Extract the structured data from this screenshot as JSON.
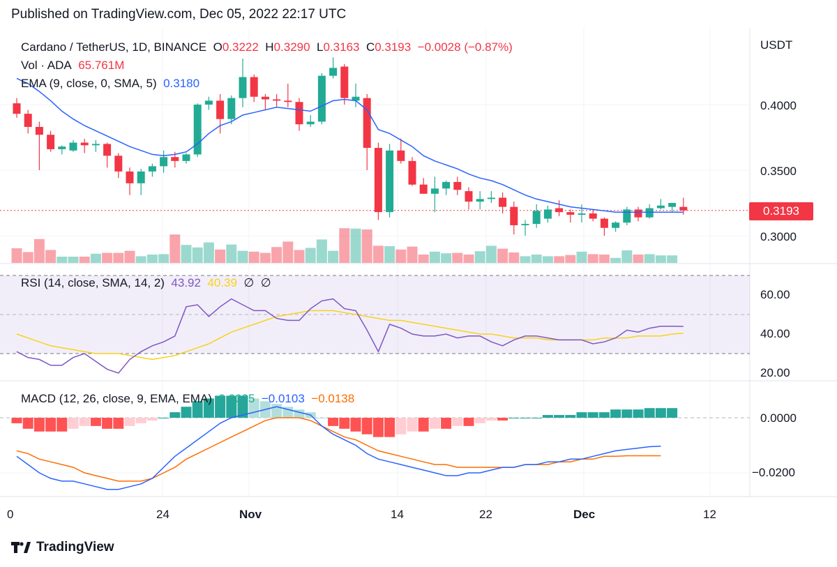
{
  "caption": "Published on TradingView.com, Dec 05, 2022 22:17 UTC",
  "footer": {
    "brand": "TradingView"
  },
  "colors": {
    "up": "#22ab94",
    "down": "#f23645",
    "ema": "#2962ff",
    "rsi": "#7e57c2",
    "rsi_ma": "#f7d21b",
    "macd": "#2962ff",
    "signal": "#ff6d00"
  },
  "legend": {
    "symbol": "Cardano / TetherUS, 1D, BINANCE",
    "o_label": "O",
    "o": "0.3222",
    "h_label": "H",
    "h": "0.3290",
    "l_label": "L",
    "l": "0.3163",
    "c_label": "C",
    "c": "0.3193",
    "change": "−0.0028 (−0.87%)",
    "vol_label": "Vol · ADA",
    "vol": "65.761M",
    "ema_label": "EMA (9, close, 0, SMA, 5)",
    "ema": "0.3180",
    "rsi_label": "RSI (14, close, SMA, 14, 2)",
    "rsi": "43.92",
    "rsi_ma": "40.39",
    "rsi_null1": "∅",
    "rsi_null2": "∅",
    "macd_label": "MACD (12, 26, close, 9, EMA, EMA)",
    "macd_hist": "0.0035",
    "macd": "−0.0103",
    "macd_signal": "−0.0138"
  },
  "price_axis": {
    "unit": "USDT",
    "ticks": [
      "0.4000",
      "0.3500",
      "0.3000"
    ],
    "last": "0.3193"
  },
  "rsi_axis": {
    "ticks": [
      "60.00",
      "40.00",
      "20.00"
    ]
  },
  "macd_axis": {
    "ticks": [
      "0.0000",
      "−0.0200"
    ]
  },
  "time_axis": {
    "ticks": [
      "0",
      "24",
      "Nov",
      "14",
      "22",
      "Dec",
      "12"
    ]
  },
  "chart_data": {
    "type": "candlestick",
    "title": "Cardano / TetherUS, 1D, BINANCE",
    "ylim": [
      0.28,
      0.44
    ],
    "x_start": "2022-10-14",
    "candles": [
      [
        0.401,
        0.405,
        0.39,
        0.393
      ],
      [
        0.393,
        0.396,
        0.378,
        0.383
      ],
      [
        0.383,
        0.387,
        0.35,
        0.377
      ],
      [
        0.377,
        0.38,
        0.364,
        0.366
      ],
      [
        0.366,
        0.369,
        0.362,
        0.368
      ],
      [
        0.365,
        0.373,
        0.364,
        0.371
      ],
      [
        0.371,
        0.374,
        0.363,
        0.369
      ],
      [
        0.369,
        0.373,
        0.364,
        0.37
      ],
      [
        0.37,
        0.371,
        0.352,
        0.361
      ],
      [
        0.361,
        0.363,
        0.344,
        0.349
      ],
      [
        0.349,
        0.352,
        0.331,
        0.34
      ],
      [
        0.34,
        0.351,
        0.331,
        0.349
      ],
      [
        0.349,
        0.355,
        0.345,
        0.353
      ],
      [
        0.353,
        0.365,
        0.348,
        0.36
      ],
      [
        0.36,
        0.364,
        0.352,
        0.357
      ],
      [
        0.357,
        0.363,
        0.355,
        0.362
      ],
      [
        0.362,
        0.401,
        0.36,
        0.4
      ],
      [
        0.4,
        0.406,
        0.396,
        0.403
      ],
      [
        0.403,
        0.408,
        0.378,
        0.389
      ],
      [
        0.389,
        0.407,
        0.385,
        0.405
      ],
      [
        0.405,
        0.435,
        0.398,
        0.421
      ],
      [
        0.421,
        0.423,
        0.402,
        0.406
      ],
      [
        0.406,
        0.408,
        0.396,
        0.404
      ],
      [
        0.404,
        0.408,
        0.398,
        0.403
      ],
      [
        0.403,
        0.416,
        0.398,
        0.402
      ],
      [
        0.402,
        0.405,
        0.38,
        0.385
      ],
      [
        0.385,
        0.392,
        0.383,
        0.387
      ],
      [
        0.387,
        0.424,
        0.385,
        0.422
      ],
      [
        0.422,
        0.436,
        0.42,
        0.428
      ],
      [
        0.429,
        0.431,
        0.4,
        0.405
      ],
      [
        0.403,
        0.416,
        0.398,
        0.406
      ],
      [
        0.405,
        0.408,
        0.35,
        0.367
      ],
      [
        0.367,
        0.371,
        0.312,
        0.318
      ],
      [
        0.318,
        0.37,
        0.314,
        0.365
      ],
      [
        0.365,
        0.374,
        0.355,
        0.357
      ],
      [
        0.357,
        0.36,
        0.338,
        0.339
      ],
      [
        0.339,
        0.344,
        0.332,
        0.332
      ],
      [
        0.332,
        0.345,
        0.318,
        0.336
      ],
      [
        0.336,
        0.342,
        0.331,
        0.341
      ],
      [
        0.341,
        0.345,
        0.331,
        0.335
      ],
      [
        0.334,
        0.337,
        0.32,
        0.326
      ],
      [
        0.326,
        0.334,
        0.32,
        0.328
      ],
      [
        0.328,
        0.334,
        0.325,
        0.329
      ],
      [
        0.329,
        0.333,
        0.317,
        0.322
      ],
      [
        0.322,
        0.326,
        0.301,
        0.308
      ],
      [
        0.308,
        0.312,
        0.3,
        0.309
      ],
      [
        0.309,
        0.324,
        0.306,
        0.319
      ],
      [
        0.313,
        0.323,
        0.31,
        0.32
      ],
      [
        0.321,
        0.327,
        0.315,
        0.318
      ],
      [
        0.318,
        0.32,
        0.31,
        0.316
      ],
      [
        0.316,
        0.324,
        0.31,
        0.317
      ],
      [
        0.317,
        0.32,
        0.311,
        0.313
      ],
      [
        0.313,
        0.314,
        0.3,
        0.306
      ],
      [
        0.306,
        0.311,
        0.303,
        0.31
      ],
      [
        0.31,
        0.322,
        0.308,
        0.32
      ],
      [
        0.32,
        0.322,
        0.311,
        0.314
      ],
      [
        0.314,
        0.324,
        0.313,
        0.321
      ],
      [
        0.321,
        0.328,
        0.32,
        0.323
      ],
      [
        0.322,
        0.325,
        0.318,
        0.325
      ],
      [
        0.322,
        0.329,
        0.316,
        0.3193
      ]
    ],
    "volume_rel": [
      0.35,
      0.26,
      0.57,
      0.31,
      0.15,
      0.15,
      0.15,
      0.22,
      0.24,
      0.24,
      0.29,
      0.16,
      0.2,
      0.21,
      0.68,
      0.43,
      0.37,
      0.49,
      0.32,
      0.44,
      0.29,
      0.27,
      0.24,
      0.38,
      0.51,
      0.31,
      0.36,
      0.56,
      0.29,
      0.83,
      0.82,
      0.8,
      0.41,
      0.4,
      0.32,
      0.39,
      0.2,
      0.27,
      0.23,
      0.24,
      0.2,
      0.28,
      0.41,
      0.34,
      0.25,
      0.16,
      0.2,
      0.16,
      0.16,
      0.19,
      0.27,
      0.21,
      0.2,
      0.12,
      0.3,
      0.2,
      0.21,
      0.18,
      0.18
    ],
    "ema": [
      0.42,
      0.416,
      0.41,
      0.403,
      0.395,
      0.389,
      0.384,
      0.38,
      0.376,
      0.372,
      0.368,
      0.365,
      0.362,
      0.361,
      0.362,
      0.364,
      0.37,
      0.378,
      0.384,
      0.387,
      0.392,
      0.394,
      0.396,
      0.398,
      0.397,
      0.396,
      0.395,
      0.399,
      0.403,
      0.404,
      0.403,
      0.396,
      0.381,
      0.378,
      0.373,
      0.368,
      0.361,
      0.357,
      0.354,
      0.351,
      0.347,
      0.344,
      0.342,
      0.339,
      0.335,
      0.331,
      0.328,
      0.326,
      0.324,
      0.322,
      0.321,
      0.32,
      0.319,
      0.318,
      0.318,
      0.318,
      0.318,
      0.318,
      0.318,
      0.318
    ],
    "rsi": [
      31,
      28,
      27,
      24,
      24,
      28,
      30,
      26,
      22,
      20,
      27,
      31,
      34,
      36,
      39,
      54,
      55,
      49,
      54,
      58,
      55,
      52,
      52,
      48,
      47,
      47,
      53,
      57,
      58,
      53,
      52,
      42,
      31,
      45,
      43,
      40,
      39,
      39,
      40,
      38,
      39,
      39,
      36,
      34,
      37,
      39,
      39,
      38,
      37,
      37,
      37,
      35,
      36,
      38,
      42,
      41,
      43,
      44,
      44,
      43.92
    ],
    "rsi_ma": [
      40,
      38,
      36,
      34,
      33,
      32,
      31,
      30,
      30,
      30,
      29,
      28,
      27,
      28,
      29,
      31,
      33,
      35,
      38,
      41,
      43,
      45,
      47,
      49,
      50,
      51,
      52,
      52,
      52,
      51,
      50,
      49,
      48,
      47,
      47,
      46,
      45,
      44,
      43,
      42,
      41,
      40,
      40,
      39,
      38,
      38,
      38,
      37,
      37,
      37,
      37,
      37,
      38,
      38,
      38,
      39,
      39,
      39,
      40,
      40.39
    ],
    "macd": [
      -0.014,
      -0.017,
      -0.02,
      -0.022,
      -0.023,
      -0.023,
      -0.024,
      -0.025,
      -0.026,
      -0.026,
      -0.025,
      -0.024,
      -0.022,
      -0.018,
      -0.014,
      -0.011,
      -0.008,
      -0.005,
      -0.002,
      0.0,
      0.001,
      0.002,
      0.003,
      0.004,
      0.003,
      0.002,
      0.001,
      -0.003,
      -0.006,
      -0.008,
      -0.01,
      -0.013,
      -0.015,
      -0.016,
      -0.017,
      -0.018,
      -0.019,
      -0.02,
      -0.021,
      -0.021,
      -0.02,
      -0.02,
      -0.019,
      -0.018,
      -0.018,
      -0.017,
      -0.017,
      -0.016,
      -0.016,
      -0.015,
      -0.015,
      -0.014,
      -0.013,
      -0.012,
      -0.0115,
      -0.011,
      -0.0105,
      -0.0103
    ],
    "signal": [
      -0.012,
      -0.013,
      -0.015,
      -0.016,
      -0.017,
      -0.018,
      -0.02,
      -0.021,
      -0.022,
      -0.023,
      -0.023,
      -0.023,
      -0.022,
      -0.02,
      -0.018,
      -0.015,
      -0.013,
      -0.011,
      -0.009,
      -0.007,
      -0.005,
      -0.003,
      -0.001,
      0.0,
      0.0,
      0.0,
      -0.001,
      -0.003,
      -0.005,
      -0.007,
      -0.008,
      -0.01,
      -0.012,
      -0.013,
      -0.014,
      -0.015,
      -0.016,
      -0.017,
      -0.017,
      -0.018,
      -0.018,
      -0.018,
      -0.018,
      -0.018,
      -0.018,
      -0.017,
      -0.017,
      -0.017,
      -0.016,
      -0.016,
      -0.015,
      -0.015,
      -0.014,
      -0.014,
      -0.0138,
      -0.0138,
      -0.0138,
      -0.0138
    ],
    "histogram": [
      -0.002,
      -0.004,
      -0.005,
      -0.005,
      -0.005,
      -0.004,
      -0.003,
      -0.003,
      -0.004,
      -0.004,
      -0.003,
      -0.002,
      -0.001,
      0.0,
      0.002,
      0.004,
      0.006,
      0.007,
      0.008,
      0.008,
      0.008,
      0.007,
      0.006,
      0.005,
      0.004,
      0.003,
      0.002,
      0.0,
      -0.003,
      -0.004,
      -0.005,
      -0.006,
      -0.007,
      -0.007,
      -0.006,
      -0.005,
      -0.005,
      -0.004,
      -0.004,
      -0.003,
      -0.003,
      -0.002,
      -0.001,
      -0.001,
      0.0,
      0.0,
      0.0,
      0.001,
      0.001,
      0.001,
      0.002,
      0.002,
      0.002,
      0.003,
      0.003,
      0.003,
      0.0035,
      0.0035,
      0.0035
    ]
  }
}
